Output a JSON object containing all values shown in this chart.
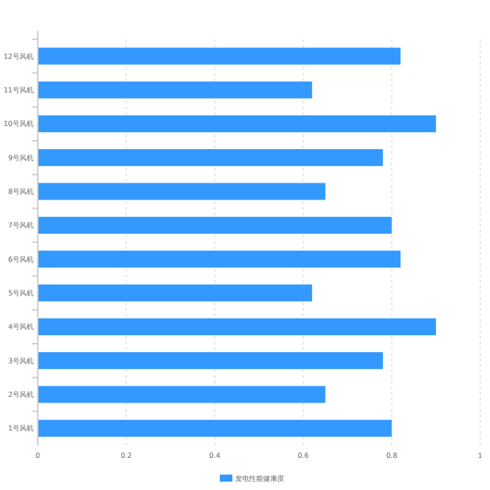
{
  "chart_data": {
    "type": "bar",
    "orientation": "horizontal",
    "categories": [
      "12号风机",
      "11号风机",
      "10号风机",
      "9号风机",
      "8号风机",
      "7号风机",
      "6号风机",
      "5号风机",
      "4号风机",
      "3号风机",
      "2号风机",
      "1号风机"
    ],
    "series": [
      {
        "name": "发电性能健康度",
        "color": "#3399ff",
        "values": [
          0.82,
          0.62,
          0.9,
          0.78,
          0.65,
          0.8,
          0.82,
          0.62,
          0.9,
          0.78,
          0.65,
          0.8
        ]
      }
    ],
    "xlim": [
      0,
      1
    ],
    "xticks": [
      0,
      0.2,
      0.4,
      0.6,
      0.8,
      1
    ],
    "grid": "x",
    "legend": "bottom"
  }
}
